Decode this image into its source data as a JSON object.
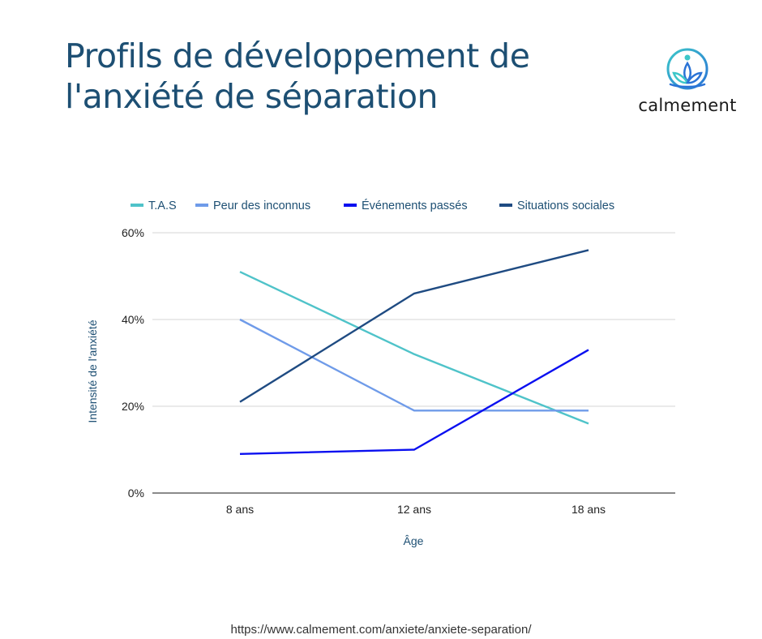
{
  "title_lines": [
    "Profils de développement de",
    "l'anxiété de séparation"
  ],
  "brand": {
    "name": "calmement",
    "logo_icon": "lotus-meditation-icon"
  },
  "footer": {
    "url": "https://www.calmement.com/anxiete/anxiete-separation/"
  },
  "chart_data": {
    "type": "line",
    "title": "Profils de développement de l'anxiété de séparation",
    "xlabel": "Âge",
    "ylabel": "Intensité de l'anxiété",
    "categories": [
      "8 ans",
      "12 ans",
      "18 ans"
    ],
    "yticks": [
      "0%",
      "20%",
      "40%",
      "60%"
    ],
    "ylim": [
      0,
      60
    ],
    "grid": true,
    "legend_position": "top",
    "series": [
      {
        "name": "T.A.S",
        "color": "#4fc3c9",
        "values": [
          51,
          32,
          16
        ]
      },
      {
        "name": "Peur des inconnus",
        "color": "#6f9be9",
        "values": [
          40,
          19,
          19
        ]
      },
      {
        "name": "Événements passés",
        "color": "#0a0ff0",
        "values": [
          9,
          10,
          33
        ]
      },
      {
        "name": "Situations sociales",
        "color": "#1f4b82",
        "values": [
          21,
          46,
          56
        ]
      }
    ]
  }
}
